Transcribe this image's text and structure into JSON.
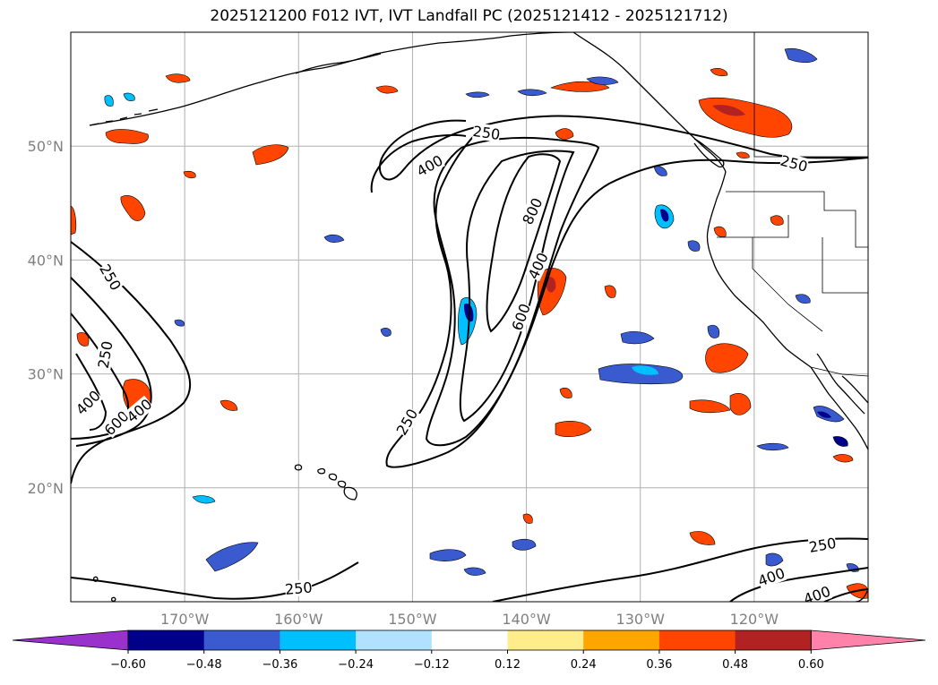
{
  "title": "2025121200 F012 IVT, IVT Landfall PC (2025121412 - 2025121712)",
  "map": {
    "lon_range": [
      -180,
      -110
    ],
    "lat_range": [
      10,
      60
    ],
    "lat_ticks": [
      "20°N",
      "30°N",
      "40°N",
      "50°N"
    ],
    "lon_ticks": [
      "170°W",
      "160°W",
      "150°W",
      "140°W",
      "130°W",
      "120°W"
    ],
    "contour_levels": [
      "250",
      "400",
      "600",
      "800"
    ],
    "contour_labels": [
      {
        "text": "250",
        "lon": -143.5,
        "lat": 51.2,
        "rot": 8
      },
      {
        "text": "400",
        "lon": -148.5,
        "lat": 48.3,
        "rot": -30
      },
      {
        "text": "800",
        "lon": -139.5,
        "lat": 44.3,
        "rot": -65
      },
      {
        "text": "400",
        "lon": -139.0,
        "lat": 39.5,
        "rot": -65
      },
      {
        "text": "600",
        "lon": -140.5,
        "lat": 35.0,
        "rot": -70
      },
      {
        "text": "250",
        "lon": -150.5,
        "lat": 25.8,
        "rot": -60
      },
      {
        "text": "250",
        "lon": -116.5,
        "lat": 48.5,
        "rot": 15
      },
      {
        "text": "250",
        "lon": -176.5,
        "lat": 38.5,
        "rot": 60
      },
      {
        "text": "250",
        "lon": -177.0,
        "lat": 31.7,
        "rot": -80
      },
      {
        "text": "400",
        "lon": -178.5,
        "lat": 27.5,
        "rot": -45
      },
      {
        "text": "600",
        "lon": -176.0,
        "lat": 25.7,
        "rot": -45
      },
      {
        "text": "400",
        "lon": -174.0,
        "lat": 26.8,
        "rot": -40
      },
      {
        "text": "250",
        "lon": -114.0,
        "lat": 15.0,
        "rot": -10
      },
      {
        "text": "400",
        "lon": -118.5,
        "lat": 12.2,
        "rot": -20
      },
      {
        "text": "400",
        "lon": -114.5,
        "lat": 10.6,
        "rot": -20
      },
      {
        "text": "250",
        "lon": -160.0,
        "lat": 11.2,
        "rot": -5
      }
    ]
  },
  "colorbar": {
    "colors": [
      "#9932cc",
      "#00008b",
      "#3a5bd0",
      "#00bfff",
      "#b0e2ff",
      "#ffffff",
      "#ffec8b",
      "#ffa500",
      "#ff4500",
      "#b22222",
      "#ff82ab"
    ],
    "tick_labels": [
      "−0.60",
      "−0.48",
      "−0.36",
      "−0.24",
      "−0.12",
      "0.12",
      "0.24",
      "0.36",
      "0.48",
      "0.60"
    ]
  }
}
